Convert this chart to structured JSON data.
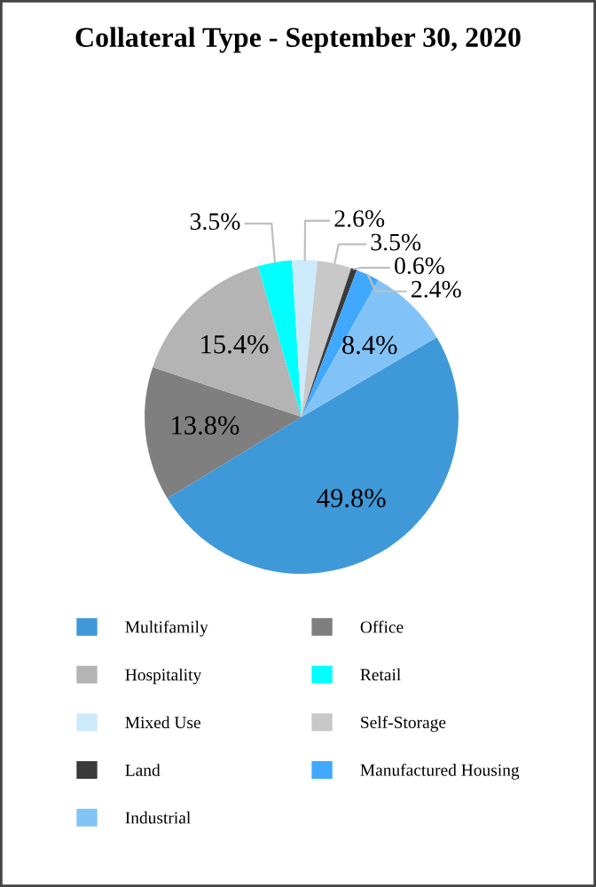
{
  "chart_data": {
    "type": "pie",
    "title": "Collateral Type - September 30, 2020",
    "categories": [
      "Multifamily",
      "Office",
      "Hospitality",
      "Retail",
      "Mixed Use",
      "Self-Storage",
      "Land",
      "Manufactured Housing",
      "Industrial"
    ],
    "values": [
      49.8,
      13.8,
      15.4,
      3.5,
      2.6,
      3.5,
      0.6,
      2.4,
      8.4
    ],
    "colors": [
      "#3f99d8",
      "#7f7f7f",
      "#b4b4b4",
      "#00ffff",
      "#cdeafb",
      "#c8c8c8",
      "#3a3a3a",
      "#40a8ff",
      "#82c3f7"
    ],
    "value_labels": [
      "49.8%",
      "13.8%",
      "15.4%",
      "3.5%",
      "2.6%",
      "3.5%",
      "0.6%",
      "2.4%",
      "8.4%"
    ],
    "legend": "bottom"
  }
}
